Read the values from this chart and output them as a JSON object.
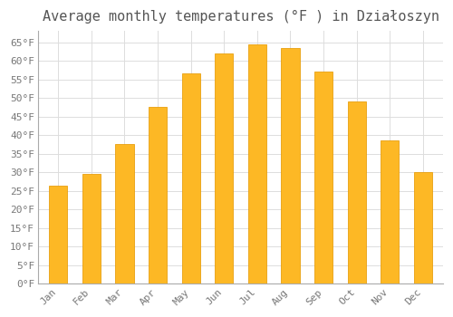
{
  "title": "Average monthly temperatures (°F ) in Działoszyn",
  "months": [
    "Jan",
    "Feb",
    "Mar",
    "Apr",
    "May",
    "Jun",
    "Jul",
    "Aug",
    "Sep",
    "Oct",
    "Nov",
    "Dec"
  ],
  "values": [
    26.5,
    29.5,
    37.5,
    47.5,
    56.5,
    62.0,
    64.5,
    63.5,
    57.0,
    49.0,
    38.5,
    30.0
  ],
  "bar_color": "#FDB825",
  "bar_edge_color": "#E8A010",
  "background_color": "#FFFFFF",
  "plot_bg_color": "#FFFFFF",
  "grid_color": "#DDDDDD",
  "text_color": "#777777",
  "title_color": "#555555",
  "ylim": [
    0,
    68
  ],
  "yticks": [
    0,
    5,
    10,
    15,
    20,
    25,
    30,
    35,
    40,
    45,
    50,
    55,
    60,
    65
  ],
  "title_fontsize": 11,
  "tick_fontsize": 8,
  "bar_width": 0.55
}
